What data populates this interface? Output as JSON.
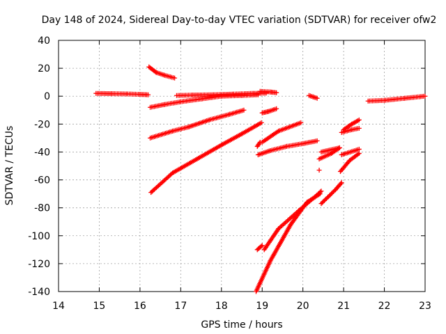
{
  "chart_data": {
    "type": "scatter",
    "title": "Day 148 of 2024, Sidereal Day-to-day VTEC variation (SDTVAR) for receiver ofw2",
    "xlabel": "GPS time / hours",
    "ylabel": "SDTVAR / TECUs",
    "xlim": [
      14,
      23
    ],
    "ylim": [
      -140,
      40
    ],
    "xticks": [
      "14",
      "15",
      "16",
      "17",
      "18",
      "19",
      "20",
      "21",
      "22",
      "23"
    ],
    "yticks": [
      "40",
      "20",
      "0",
      "-20",
      "-40",
      "-60",
      "-80",
      "-100",
      "-120",
      "-140"
    ],
    "grid": true,
    "marker": "+",
    "color": "#ff0000",
    "series": [
      {
        "x": [
          14.92,
          15.3,
          15.7,
          16.0,
          16.2
        ],
        "y": [
          2,
          1.8,
          1.6,
          1.3,
          1
        ]
      },
      {
        "x": [
          16.22,
          16.4,
          16.6,
          16.85
        ],
        "y": [
          21,
          17,
          15,
          13
        ]
      },
      {
        "x": [
          16.25,
          16.6,
          17.0,
          17.5,
          18.0,
          18.5,
          18.9
        ],
        "y": [
          -8,
          -6,
          -4,
          -2,
          0,
          0.5,
          1
        ]
      },
      {
        "x": [
          16.9,
          17.3,
          17.8,
          18.3,
          18.75,
          19.1
        ],
        "y": [
          0.5,
          0.8,
          1,
          1.5,
          2,
          2.2
        ]
      },
      {
        "x": [
          18.95,
          19.2,
          19.35
        ],
        "y": [
          3.5,
          3,
          2.5
        ]
      },
      {
        "x": [
          20.15,
          20.25,
          20.35
        ],
        "y": [
          0.5,
          -0.5,
          -1.5
        ]
      },
      {
        "x": [
          21.6,
          22.0,
          22.5,
          23.0
        ],
        "y": [
          -3.5,
          -3,
          -1.5,
          0
        ]
      },
      {
        "x": [
          16.25,
          16.8,
          17.2,
          17.7,
          18.2,
          18.55
        ],
        "y": [
          -30,
          -25,
          -22,
          -17,
          -13,
          -10
        ]
      },
      {
        "x": [
          19.0,
          19.15,
          19.35
        ],
        "y": [
          -12,
          -11,
          -9
        ]
      },
      {
        "x": [
          16.27,
          16.8,
          17.4,
          18.0,
          18.5,
          18.98
        ],
        "y": [
          -69,
          -55,
          -45,
          -35,
          -27,
          -19
        ]
      },
      {
        "x": [
          18.88,
          18.95
        ],
        "y": [
          -36,
          -33
        ]
      },
      {
        "x": [
          19.0,
          19.4,
          19.95
        ],
        "y": [
          -33,
          -25,
          -19
        ]
      },
      {
        "x": [
          18.9,
          19.2,
          19.6,
          20.0,
          20.35
        ],
        "y": [
          -42,
          -39,
          -36,
          -34,
          -32
        ]
      },
      {
        "x": [
          18.88,
          19.0
        ],
        "y": [
          -110,
          -107
        ]
      },
      {
        "x": [
          19.05,
          19.4,
          19.9,
          20.3,
          20.45
        ],
        "y": [
          -110,
          -95,
          -82,
          -72,
          -68
        ]
      },
      {
        "x": [
          18.85,
          19.2,
          19.7,
          20.1,
          20.42
        ],
        "y": [
          -140,
          -118,
          -92,
          -76,
          -70
        ]
      },
      {
        "x": [
          20.45,
          20.8,
          20.95
        ],
        "y": [
          -77,
          -67,
          -62
        ]
      },
      {
        "x": [
          20.4
        ],
        "y": [
          -53
        ]
      },
      {
        "x": [
          20.4,
          20.7,
          20.9
        ],
        "y": [
          -45,
          -41,
          -37
        ]
      },
      {
        "x": [
          20.45,
          20.9
        ],
        "y": [
          -40,
          -37
        ]
      },
      {
        "x": [
          20.92,
          21.15,
          21.38
        ],
        "y": [
          -54,
          -46,
          -41
        ]
      },
      {
        "x": [
          20.95,
          21.38
        ],
        "y": [
          -42,
          -38
        ]
      },
      {
        "x": [
          20.95,
          21.2,
          21.38
        ],
        "y": [
          -26,
          -24,
          -23
        ]
      },
      {
        "x": [
          21.0,
          21.2,
          21.38
        ],
        "y": [
          -24,
          -20,
          -17
        ]
      }
    ]
  }
}
